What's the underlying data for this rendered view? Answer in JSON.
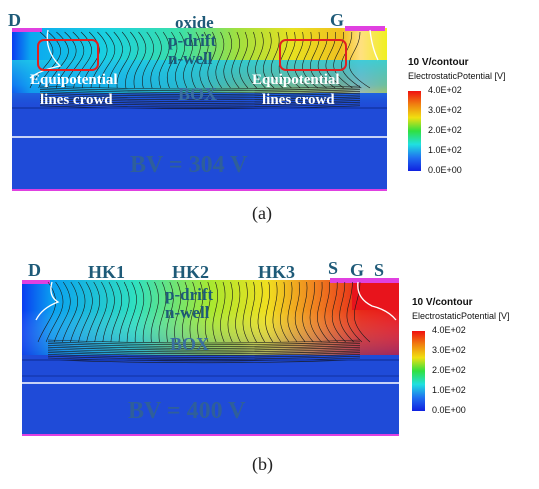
{
  "colors": {
    "region_blue": "#1f4bd8",
    "region_deep_blue": "#1236c8",
    "region_red": "#e8141c",
    "contour": "#1a1a1a",
    "substrate_edge": "#ffffff",
    "electrode": "#e040e0",
    "annotation_box": "#e02020",
    "text_dark": "#1e5a78",
    "text_white": "#ffffff",
    "text_gray_blue": "#3a6fa0"
  },
  "panel_a": {
    "labels": {
      "drain": "D",
      "gate": "G",
      "oxide": "oxide",
      "p_drift": "p-drift",
      "n_well": "n-well",
      "box": "BOX",
      "left_note_1": "Equipotential",
      "left_note_2": "lines crowd",
      "right_note_1": "Equipotential",
      "right_note_2": "lines crowd",
      "bv": "BV = 304 V"
    },
    "caption": "(a)",
    "legend": {
      "header": "10 V/contour",
      "quantity": "ElectrostaticPotential [V]",
      "ticks": [
        "4.0E+02",
        "3.0E+02",
        "2.0E+02",
        "1.0E+02",
        "0.0E+00"
      ]
    }
  },
  "panel_b": {
    "labels": {
      "drain": "D",
      "hk1": "HK1",
      "hk2": "HK2",
      "hk3": "HK3",
      "source_1": "S",
      "gate": "G",
      "source_2": "S",
      "p_drift": "p-drift",
      "n_well": "n-well",
      "box": "BOX",
      "bv": "BV = 400 V"
    },
    "caption": "(b)",
    "legend": {
      "header": "10 V/contour",
      "quantity": "ElectrostaticPotential [V]",
      "ticks": [
        "4.0E+02",
        "3.0E+02",
        "2.0E+02",
        "1.0E+02",
        "0.0E+00"
      ]
    }
  }
}
